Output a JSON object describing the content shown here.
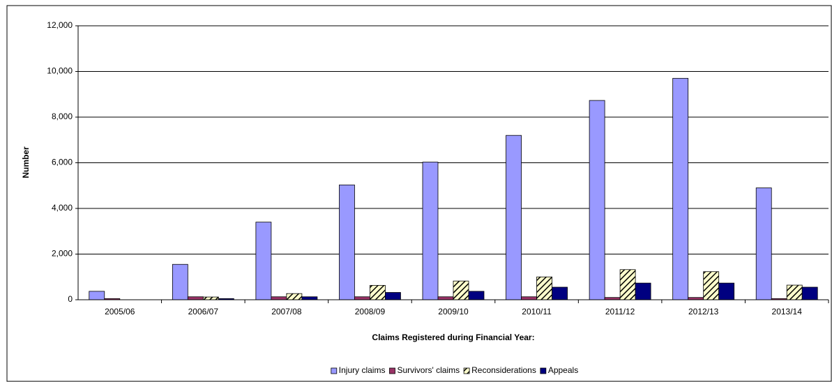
{
  "chart_data": {
    "type": "bar",
    "y_label": "Number",
    "x_label": "Claims Registered during Financial Year:",
    "categories": [
      "2005/06",
      "2006/07",
      "2007/08",
      "2008/09",
      "2009/10",
      "2010/11",
      "2011/12",
      "2012/13",
      "2013/14"
    ],
    "series": [
      {
        "name": "Injury claims",
        "color": "#9999ff",
        "values": [
          370,
          1550,
          3400,
          5030,
          6030,
          7200,
          8730,
          9700,
          4900
        ]
      },
      {
        "name": "Survivors' claims",
        "color": "#993366",
        "values": [
          50,
          130,
          130,
          130,
          130,
          130,
          100,
          100,
          50
        ]
      },
      {
        "name": "Reconsiderations",
        "color": "#ffffcc",
        "hatch": true,
        "values": [
          0,
          120,
          270,
          630,
          820,
          1000,
          1320,
          1230,
          640
        ]
      },
      {
        "name": "Appeals",
        "color": "#000080",
        "values": [
          0,
          50,
          130,
          320,
          370,
          550,
          730,
          730,
          550
        ]
      }
    ],
    "ylim": [
      0,
      12000
    ],
    "yticks": [
      0,
      {
        "value": 2000,
        "label": "2,000"
      },
      {
        "value": 4000,
        "label": "4,000"
      },
      {
        "value": 6000,
        "label": "6,000"
      },
      {
        "value": 8000,
        "label": "8,000"
      },
      {
        "value": 10000,
        "label": "10,000"
      },
      {
        "value": 12000,
        "label": "12,000"
      }
    ],
    "grid": true,
    "legend": "bottom"
  }
}
